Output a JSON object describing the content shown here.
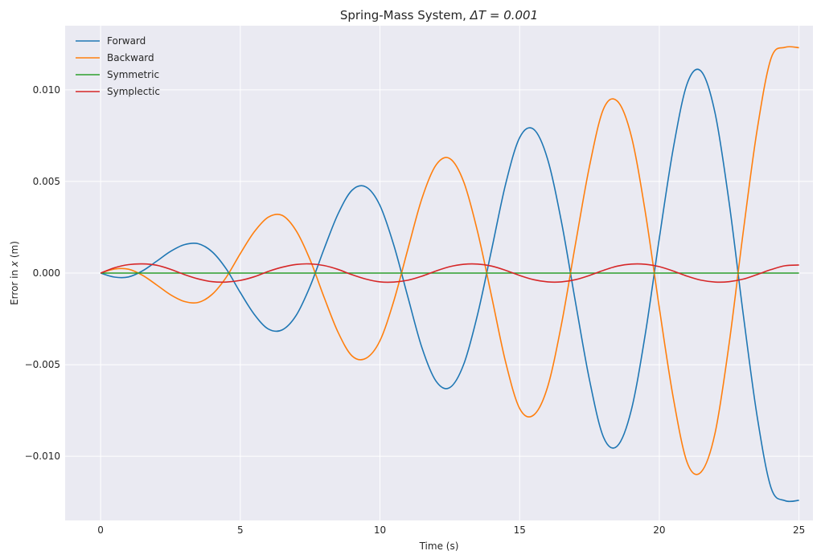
{
  "chart_data": {
    "type": "line",
    "title_prefix": "Spring-Mass System, ",
    "title_math": "ΔT = 0.001",
    "xlabel": "Time (s)",
    "ylabel_prefix": "Error in ",
    "ylabel_var": "x",
    "ylabel_suffix": " (m)",
    "xlim": [
      -1.27,
      25.5
    ],
    "ylim": [
      -0.0135,
      0.0135
    ],
    "xticks": [
      0,
      5,
      10,
      15,
      20,
      25
    ],
    "xtick_labels": [
      "0",
      "5",
      "10",
      "15",
      "20",
      "25"
    ],
    "yticks": [
      -0.01,
      -0.005,
      0.0,
      0.005,
      0.01
    ],
    "ytick_labels": [
      "−0.010",
      "−0.005",
      "0.000",
      "0.005",
      "0.010"
    ],
    "grid": true,
    "legend_position": "top-left",
    "background": "#eaeaf2",
    "series": [
      {
        "name": "Forward",
        "color": "#1f77b4",
        "x": [
          0,
          0.5,
          1.0,
          1.5,
          2.0,
          2.5,
          3.0,
          3.5,
          4.0,
          4.5,
          5.0,
          5.5,
          6.0,
          6.5,
          7.0,
          7.5,
          8.0,
          8.5,
          9.0,
          9.5,
          10.0,
          10.5,
          11.0,
          11.5,
          12.0,
          12.5,
          13.0,
          13.5,
          14.0,
          14.5,
          15.0,
          15.5,
          16.0,
          16.5,
          17.0,
          17.5,
          18.0,
          18.5,
          19.0,
          19.5,
          20.0,
          20.5,
          21.0,
          21.5,
          22.0,
          22.5,
          23.0,
          23.5,
          24.0,
          24.5,
          25.0
        ],
        "y": [
          0.0,
          -0.00022,
          -0.00021,
          0.00012,
          0.00064,
          0.00118,
          0.00155,
          0.0016,
          0.00115,
          0.00022,
          -0.00106,
          -0.00225,
          -0.00305,
          -0.0031,
          -0.00231,
          -0.00072,
          0.00132,
          0.00323,
          0.00452,
          0.0047,
          0.00369,
          0.0015,
          -0.00131,
          -0.00406,
          -0.00588,
          -0.00625,
          -0.00497,
          -0.00222,
          0.0013,
          0.00487,
          0.00739,
          0.00785,
          0.00622,
          0.00277,
          -0.0016,
          -0.00583,
          -0.00895,
          -0.00943,
          -0.00746,
          -0.00331,
          0.0019,
          0.00681,
          0.01035,
          0.01101,
          0.0087,
          0.00384,
          -0.0022,
          -0.0078,
          -0.01172,
          -0.01242,
          -0.0124
        ]
      },
      {
        "name": "Backward",
        "color": "#ff7f0e",
        "x": [
          0,
          0.5,
          1.0,
          1.5,
          2.0,
          2.5,
          3.0,
          3.5,
          4.0,
          4.5,
          5.0,
          5.5,
          6.0,
          6.5,
          7.0,
          7.5,
          8.0,
          8.5,
          9.0,
          9.5,
          10.0,
          10.5,
          11.0,
          11.5,
          12.0,
          12.5,
          13.0,
          13.5,
          14.0,
          14.5,
          15.0,
          15.5,
          16.0,
          16.5,
          17.0,
          17.5,
          18.0,
          18.5,
          19.0,
          19.5,
          20.0,
          20.5,
          21.0,
          21.5,
          22.0,
          22.5,
          23.0,
          23.5,
          24.0,
          24.5,
          25.0
        ],
        "y": [
          0.0,
          0.00022,
          0.00021,
          -0.00012,
          -0.00064,
          -0.00118,
          -0.00155,
          -0.0016,
          -0.00115,
          -0.00022,
          0.00106,
          0.00225,
          0.00305,
          0.00315,
          0.00231,
          0.00072,
          -0.00132,
          -0.00323,
          -0.00452,
          -0.00465,
          -0.00369,
          -0.0015,
          0.00131,
          0.00406,
          0.00588,
          0.00625,
          0.00497,
          0.00222,
          -0.0013,
          -0.00487,
          -0.00739,
          -0.00775,
          -0.00622,
          -0.00277,
          0.0016,
          0.00583,
          0.00895,
          0.00938,
          0.00746,
          0.00331,
          -0.0019,
          -0.00681,
          -0.01035,
          -0.01085,
          -0.0087,
          -0.00384,
          0.0022,
          0.0078,
          0.01172,
          0.01232,
          0.0123
        ]
      },
      {
        "name": "Symmetric",
        "color": "#2ca02c",
        "x": [
          0,
          25
        ],
        "y": [
          0.0,
          0.0
        ]
      },
      {
        "name": "Symplectic",
        "color": "#d62728",
        "x": [
          0,
          0.5,
          1.0,
          1.5,
          2.0,
          2.5,
          3.0,
          3.5,
          4.0,
          4.5,
          5.0,
          5.5,
          6.0,
          6.5,
          7.0,
          7.5,
          8.0,
          8.5,
          9.0,
          9.5,
          10.0,
          10.5,
          11.0,
          11.5,
          12.0,
          12.5,
          13.0,
          13.5,
          14.0,
          14.5,
          15.0,
          15.5,
          16.0,
          16.5,
          17.0,
          17.5,
          18.0,
          18.5,
          19.0,
          19.5,
          20.0,
          20.5,
          21.0,
          21.5,
          22.0,
          22.5,
          23.0,
          23.5,
          24.0,
          24.5,
          25.0
        ],
        "y": [
          0.0,
          0.00029,
          0.00046,
          0.0005,
          0.00043,
          0.00021,
          -8e-05,
          -0.00032,
          -0.00047,
          -0.00049,
          -0.0004,
          -0.0002,
          9e-05,
          0.00032,
          0.00047,
          0.0005,
          0.00041,
          0.0002,
          -9e-05,
          -0.00033,
          -0.00048,
          -0.00049,
          -0.00039,
          -0.00017,
          0.00011,
          0.00035,
          0.00048,
          0.00049,
          0.00038,
          0.00015,
          -0.00013,
          -0.00036,
          -0.00048,
          -0.00048,
          -0.00036,
          -0.00013,
          0.00015,
          0.00038,
          0.00049,
          0.00048,
          0.00035,
          0.00011,
          -0.00017,
          -0.00039,
          -0.00049,
          -0.00047,
          -0.00033,
          -8e-05,
          0.00019,
          0.0004,
          0.00044
        ]
      }
    ]
  }
}
